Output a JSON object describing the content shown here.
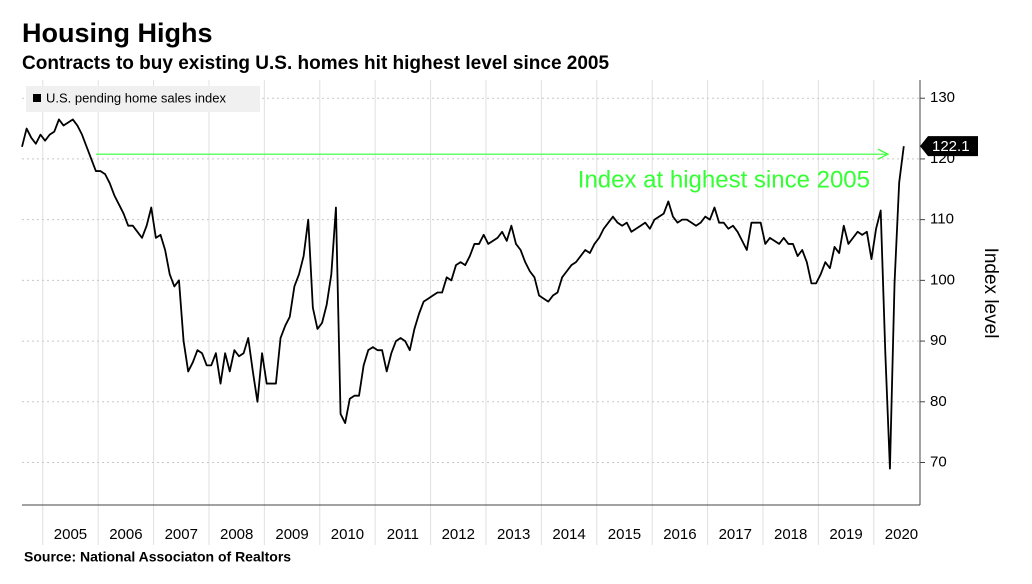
{
  "chart_data": {
    "type": "line",
    "title": "Housing Highs",
    "subtitle": "Contracts to buy existing U.S. homes hit highest level since 2005",
    "source": "Source: National Associaton of Realtors",
    "y_axis_label": "Index level",
    "annotation": "Index at highest since 2005",
    "annotation_color": "#33ff33",
    "categories": [
      null,
      null,
      null,
      null,
      null,
      null,
      null,
      null,
      null,
      null,
      null,
      "2005",
      null,
      null,
      null,
      null,
      null,
      null,
      null,
      null,
      null,
      null,
      null,
      "2006",
      null,
      null,
      null,
      null,
      null,
      null,
      null,
      null,
      null,
      null,
      null,
      "2007",
      null,
      null,
      null,
      null,
      null,
      null,
      null,
      null,
      null,
      null,
      null,
      "2008",
      null,
      null,
      null,
      null,
      null,
      null,
      null,
      null,
      null,
      null,
      null,
      "2009",
      null,
      null,
      null,
      null,
      null,
      null,
      null,
      null,
      null,
      null,
      null,
      "2010",
      null,
      null,
      null,
      null,
      null,
      null,
      null,
      null,
      null,
      null,
      null,
      "2011",
      null,
      null,
      null,
      null,
      null,
      null,
      null,
      null,
      null,
      null,
      null,
      "2012",
      null,
      null,
      null,
      null,
      null,
      null,
      null,
      null,
      null,
      null,
      null,
      "2013",
      null,
      null,
      null,
      null,
      null,
      null,
      null,
      null,
      null,
      null,
      null,
      "2014",
      null,
      null,
      null,
      null,
      null,
      null,
      null,
      null,
      null,
      null,
      null,
      "2015",
      null,
      null,
      null,
      null,
      null,
      null,
      null,
      null,
      null,
      null,
      null,
      "2016",
      null,
      null,
      null,
      null,
      null,
      null,
      null,
      null,
      null,
      null,
      null,
      "2017",
      null,
      null,
      null,
      null,
      null,
      null,
      null,
      null,
      null,
      null,
      null,
      "2018",
      null,
      null,
      null,
      null,
      null,
      null,
      null,
      null,
      null,
      null,
      null,
      "2019",
      null,
      null,
      null,
      null,
      null,
      null,
      null,
      null,
      null,
      null,
      null,
      "2020"
    ],
    "series": [
      {
        "name": "U.S. pending home sales index",
        "color": "#000000",
        "values": [
          122,
          125,
          123.5,
          122.5,
          124,
          123,
          124,
          124.5,
          126.5,
          125.5,
          126,
          126.5,
          125.5,
          124,
          122,
          120,
          118,
          118,
          117.5,
          116,
          114,
          112.5,
          111,
          109,
          109,
          108,
          107,
          109,
          112,
          107,
          107.5,
          105,
          101,
          99,
          100,
          90,
          85,
          86.5,
          88.5,
          88,
          86,
          86,
          88,
          83,
          88,
          85,
          88.5,
          87.5,
          88,
          90.5,
          85,
          80,
          88,
          83,
          83,
          83,
          90.5,
          92.5,
          94,
          99,
          101,
          104,
          110,
          95.5,
          92,
          93,
          96,
          101,
          112,
          78,
          76.5,
          80.5,
          81,
          81,
          86,
          88.5,
          89,
          88.5,
          88.5,
          85,
          88,
          90,
          90.5,
          90,
          88.5,
          92,
          94.5,
          96.5,
          97,
          97.5,
          98,
          98,
          100.5,
          100,
          102.5,
          103,
          102.5,
          104,
          106,
          106,
          107.5,
          106,
          106.5,
          107,
          108,
          106.5,
          109,
          106,
          105,
          103,
          101.5,
          100.5,
          97.5,
          97,
          96.5,
          97.5,
          98,
          100.5,
          101.5,
          102.5,
          103,
          104,
          105,
          104.5,
          106,
          107,
          108.5,
          109.5,
          110.5,
          109.5,
          109,
          109.5,
          108,
          108.5,
          109,
          109.5,
          108.5,
          110,
          110.5,
          111,
          113,
          110.5,
          109.5,
          110,
          110,
          109.5,
          109,
          109.5,
          110.5,
          110,
          112,
          109.5,
          109.5,
          108.5,
          109,
          108,
          106.5,
          105,
          109.5,
          109.5,
          109.5,
          106,
          107,
          106.5,
          106,
          107,
          106,
          106,
          104,
          105,
          103,
          99.5,
          99.5,
          101,
          103,
          102,
          105.5,
          104.5,
          109,
          106,
          107,
          108,
          107.5,
          108,
          103.5,
          108.5,
          111.5,
          88,
          69,
          99.6,
          116.1,
          122.1
        ]
      }
    ],
    "ylim": [
      63,
      133
    ],
    "yticks": [
      70,
      80,
      90,
      100,
      110,
      120,
      130
    ],
    "grid": true
  }
}
